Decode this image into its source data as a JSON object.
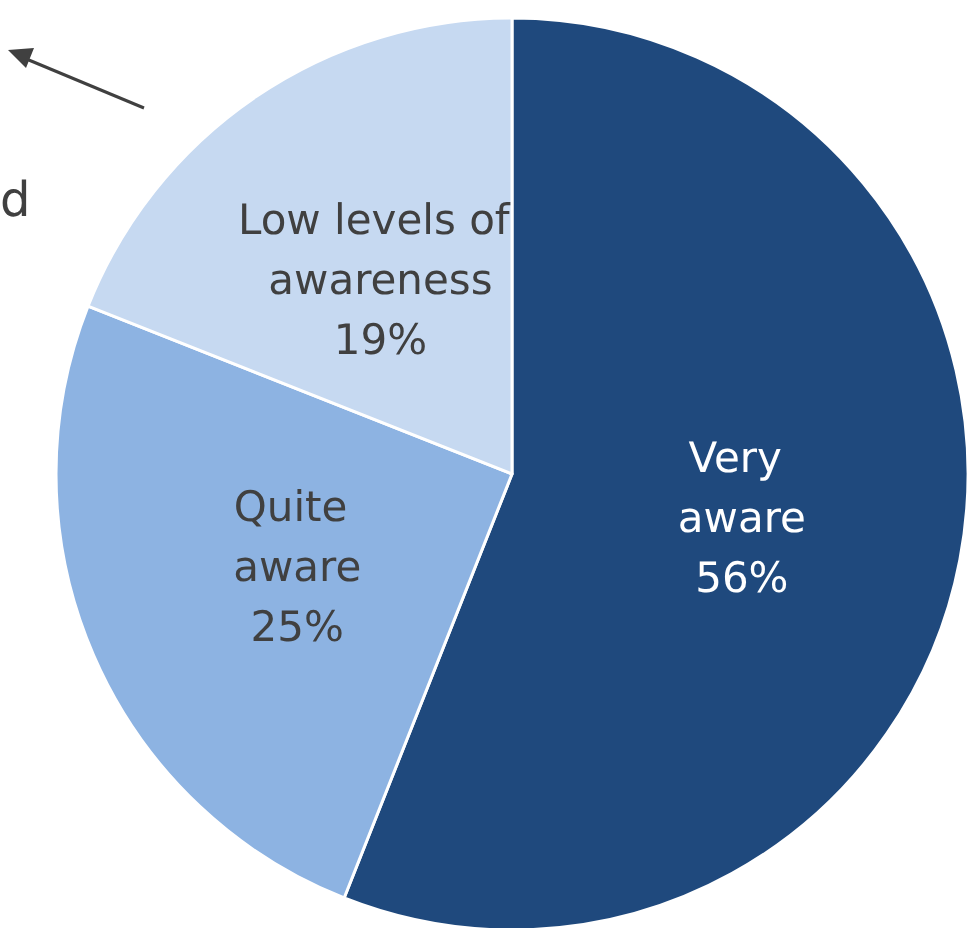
{
  "chart_data": {
    "type": "pie",
    "categories": [
      "Very aware",
      "Quite aware",
      "Low levels of awareness"
    ],
    "values": [
      56,
      25,
      19
    ],
    "value_labels": [
      "56%",
      "25%",
      "19%"
    ],
    "colors": [
      "#1f497d",
      "#8db3e2",
      "#c6d9f1"
    ],
    "annotations": [
      "d"
    ]
  }
}
